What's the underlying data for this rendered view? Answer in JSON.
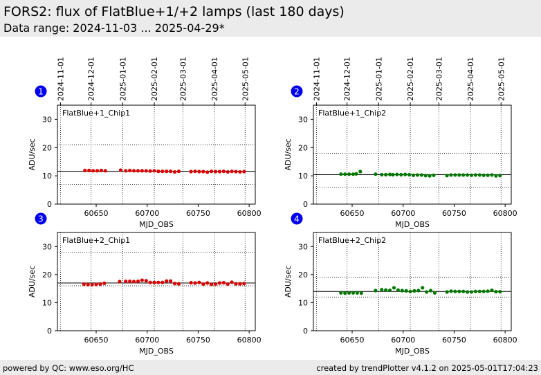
{
  "header": {
    "title": "FORS2: flux of FlatBlue+1/+2 lamps (last 180 days)",
    "subtitle": "Data range: 2024-11-03 ... 2025-04-29*"
  },
  "footer": {
    "left": "powered by QC: www.eso.org/HC",
    "right": "created by trendPlotter v4.1.2 on 2025-05-01T17:04:23"
  },
  "chart_data": [
    {
      "type": "scatter",
      "panel_number": "1",
      "label": "FlatBlue+1_Chip1",
      "color": "#dd0000",
      "xlabel": "MJD_OBS",
      "ylabel": "ADU/sec",
      "xlim": [
        60612,
        60806
      ],
      "ylim": [
        0,
        35
      ],
      "xticks": [
        60650,
        60700,
        60750,
        60800
      ],
      "yticks": [
        0,
        10,
        20,
        30
      ],
      "date_ticks": [
        {
          "mjd": 60615,
          "label": "2024-11-01"
        },
        {
          "mjd": 60645,
          "label": "2024-12-01"
        },
        {
          "mjd": 60676,
          "label": "2025-01-01"
        },
        {
          "mjd": 60707,
          "label": "2025-02-01"
        },
        {
          "mjd": 60735,
          "label": "2025-03-01"
        },
        {
          "mjd": 60766,
          "label": "2025-04-01"
        },
        {
          "mjd": 60796,
          "label": "2025-05-01"
        }
      ],
      "mean_line": 11.6,
      "limit_lines": [
        21,
        7
      ],
      "x": [
        60639,
        60643,
        60647,
        60651,
        60655,
        60659,
        60674,
        60679,
        60683,
        60687,
        60691,
        60695,
        60699,
        60703,
        60707,
        60711,
        60715,
        60719,
        60723,
        60727,
        60731,
        60743,
        60747,
        60751,
        60755,
        60759,
        60763,
        60767,
        60771,
        60775,
        60779,
        60783,
        60787,
        60791,
        60795
      ],
      "y": [
        11.9,
        11.9,
        11.8,
        11.8,
        11.9,
        11.8,
        12.0,
        11.8,
        11.9,
        11.8,
        11.8,
        11.8,
        11.8,
        11.7,
        11.8,
        11.6,
        11.6,
        11.6,
        11.6,
        11.4,
        11.6,
        11.5,
        11.6,
        11.5,
        11.5,
        11.3,
        11.6,
        11.5,
        11.5,
        11.6,
        11.4,
        11.6,
        11.5,
        11.4,
        11.5
      ]
    },
    {
      "type": "scatter",
      "panel_number": "2",
      "label": "FlatBlue+1_Chip2",
      "color": "#007700",
      "xlabel": "MJD_OBS",
      "ylabel": "ADU/sec",
      "xlim": [
        60612,
        60806
      ],
      "ylim": [
        0,
        35
      ],
      "xticks": [
        60650,
        60700,
        60750,
        60800
      ],
      "yticks": [
        0,
        10,
        20,
        30
      ],
      "date_ticks": [
        {
          "mjd": 60615,
          "label": "2024-11-01"
        },
        {
          "mjd": 60645,
          "label": "2024-12-01"
        },
        {
          "mjd": 60676,
          "label": "2025-01-01"
        },
        {
          "mjd": 60707,
          "label": "2025-02-01"
        },
        {
          "mjd": 60735,
          "label": "2025-03-01"
        },
        {
          "mjd": 60766,
          "label": "2025-04-01"
        },
        {
          "mjd": 60796,
          "label": "2025-05-01"
        }
      ],
      "mean_line": 10.4,
      "limit_lines": [
        18,
        6
      ],
      "x": [
        60639,
        60643,
        60647,
        60651,
        60654,
        60658,
        60673,
        60679,
        60683,
        60687,
        60690,
        60694,
        60698,
        60702,
        60706,
        60710,
        60714,
        60718,
        60722,
        60726,
        60730,
        60743,
        60747,
        60751,
        60755,
        60759,
        60763,
        60767,
        60771,
        60775,
        60779,
        60783,
        60787,
        60791,
        60795
      ],
      "y": [
        10.6,
        10.6,
        10.6,
        10.6,
        10.7,
        11.5,
        10.6,
        10.4,
        10.4,
        10.5,
        10.4,
        10.5,
        10.4,
        10.5,
        10.4,
        10.2,
        10.3,
        10.3,
        10.1,
        10.0,
        10.2,
        10.1,
        10.3,
        10.3,
        10.3,
        10.3,
        10.3,
        10.2,
        10.3,
        10.3,
        10.2,
        10.2,
        10.3,
        10.0,
        10.1
      ]
    },
    {
      "type": "scatter",
      "panel_number": "3",
      "label": "FlatBlue+2_Chip1",
      "color": "#dd0000",
      "xlabel": "MJD_OBS",
      "ylabel": "ADU/sec",
      "xlim": [
        60612,
        60806
      ],
      "ylim": [
        0,
        35
      ],
      "xticks": [
        60650,
        60700,
        60750,
        60800
      ],
      "yticks": [
        0,
        10,
        20,
        30
      ],
      "mean_line": 17.0,
      "limit_lines": [
        28,
        16
      ],
      "x": [
        60638,
        60642,
        60646,
        60650,
        60654,
        60658,
        60673,
        60679,
        60683,
        60687,
        60691,
        60695,
        60699,
        60703,
        60707,
        60711,
        60715,
        60719,
        60723,
        60727,
        60731,
        60743,
        60747,
        60751,
        60755,
        60759,
        60763,
        60767,
        60771,
        60775,
        60779,
        60783,
        60787,
        60791,
        60795
      ],
      "y": [
        16.6,
        16.4,
        16.4,
        16.5,
        16.6,
        16.9,
        17.5,
        17.6,
        17.6,
        17.5,
        17.6,
        18.0,
        17.8,
        17.2,
        17.2,
        17.2,
        17.2,
        17.7,
        17.7,
        16.8,
        16.7,
        17.1,
        17.0,
        17.2,
        16.6,
        17.0,
        16.5,
        16.6,
        17.0,
        17.1,
        16.6,
        17.3,
        16.7,
        16.7,
        16.8
      ]
    },
    {
      "type": "scatter",
      "panel_number": "4",
      "label": "FlatBlue+2_Chip2",
      "color": "#007700",
      "xlabel": "MJD_OBS",
      "ylabel": "ADU/sec",
      "xlim": [
        60612,
        60806
      ],
      "ylim": [
        0,
        35
      ],
      "xticks": [
        60650,
        60700,
        60750,
        60800
      ],
      "yticks": [
        0,
        10,
        20,
        30
      ],
      "mean_line": 14.0,
      "limit_lines": [
        19,
        12
      ],
      "x": [
        60639,
        60643,
        60647,
        60651,
        60655,
        60659,
        60673,
        60679,
        60683,
        60687,
        60691,
        60695,
        60699,
        60703,
        60707,
        60711,
        60715,
        60719,
        60723,
        60727,
        60731,
        60743,
        60747,
        60751,
        60755,
        60759,
        60763,
        60767,
        60771,
        60775,
        60779,
        60783,
        60787,
        60791,
        60795
      ],
      "y": [
        13.5,
        13.4,
        13.5,
        13.5,
        13.5,
        13.4,
        14.3,
        14.6,
        14.5,
        14.4,
        15.3,
        14.5,
        14.3,
        14.2,
        14.0,
        14.2,
        14.3,
        15.3,
        13.8,
        14.3,
        13.5,
        13.8,
        14.1,
        14.0,
        14.0,
        14.0,
        13.8,
        13.8,
        14.0,
        14.0,
        14.0,
        14.1,
        14.4,
        13.9,
        13.9
      ]
    }
  ]
}
